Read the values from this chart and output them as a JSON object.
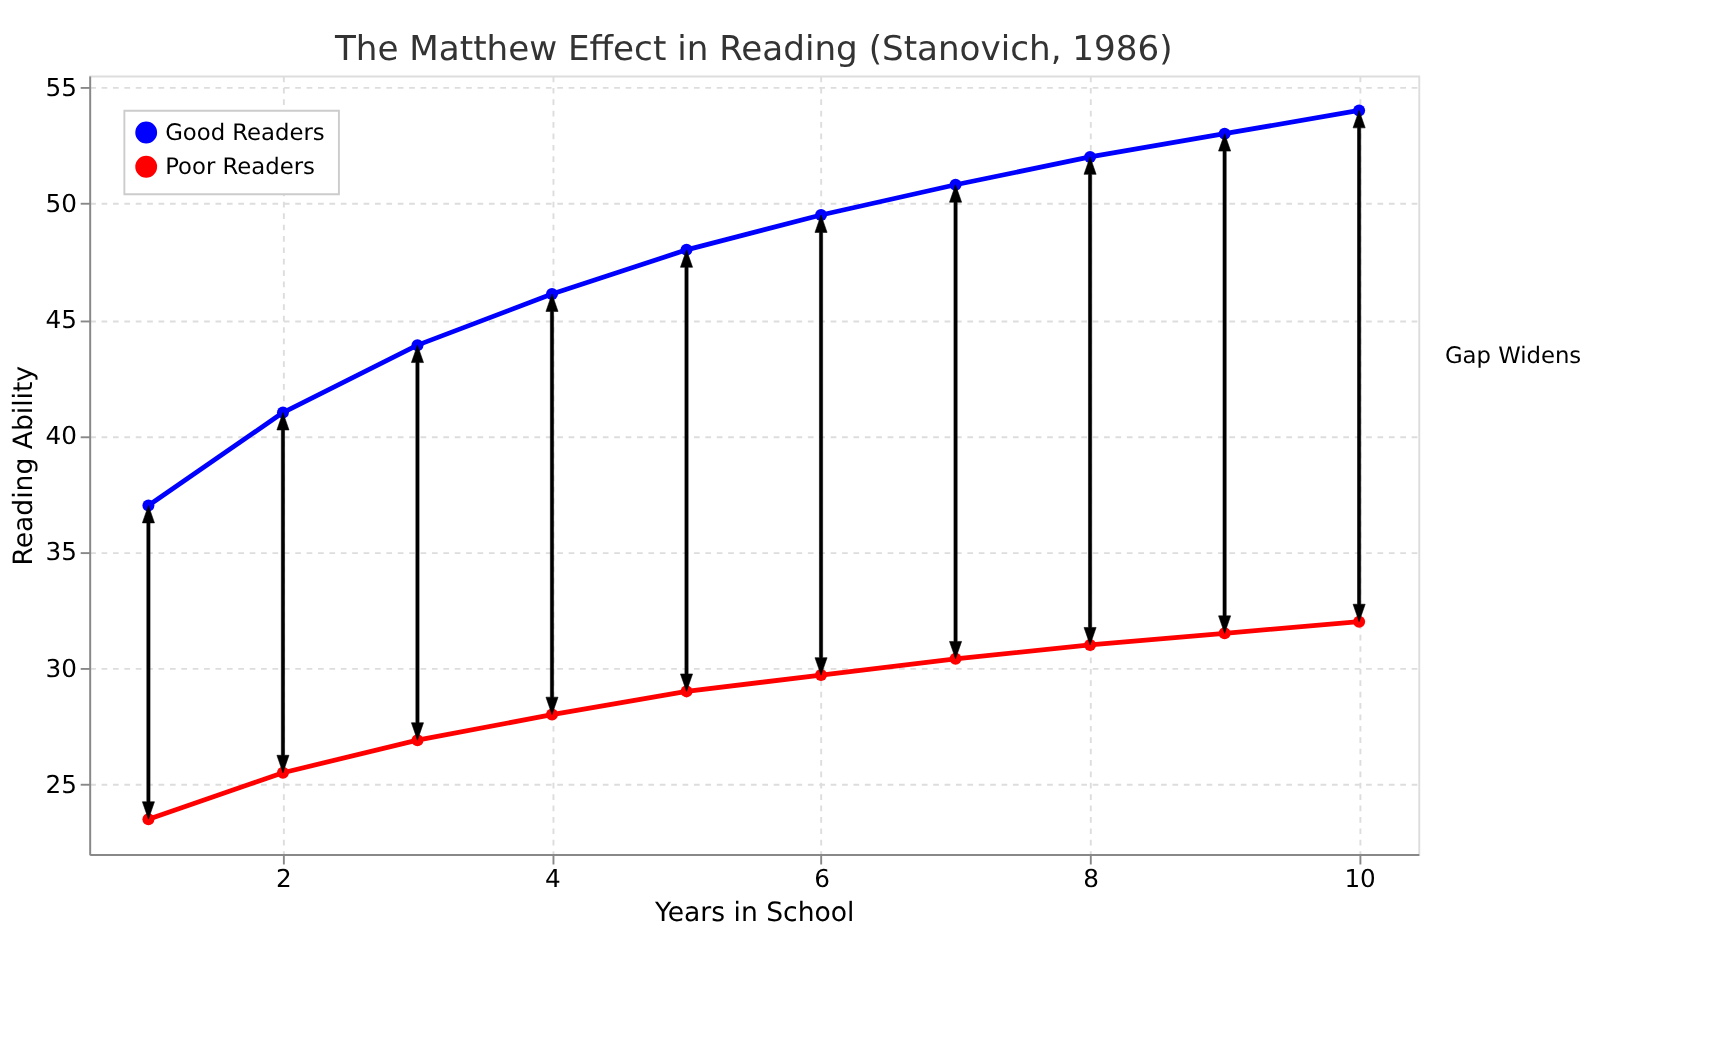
{
  "chart_data": {
    "type": "line",
    "title": "The Matthew Effect in Reading (Stanovich, 1986)",
    "xlabel": "Years in School",
    "ylabel": "Reading Ability",
    "x": [
      1,
      2,
      3,
      4,
      5,
      6,
      7,
      8,
      9,
      10
    ],
    "series": [
      {
        "name": "Good Readers",
        "color": "#0000ff",
        "values": [
          37.0,
          41.0,
          43.9,
          46.1,
          48.0,
          49.5,
          50.8,
          52.0,
          53.0,
          54.0
        ]
      },
      {
        "name": "Poor Readers",
        "color": "#ff0000",
        "values": [
          23.5,
          25.5,
          26.9,
          28.0,
          29.0,
          29.7,
          30.4,
          31.0,
          31.5,
          32.0
        ]
      }
    ],
    "xlim": [
      0.56,
      10.44
    ],
    "xticks": [
      2,
      4,
      6,
      8,
      10
    ],
    "ylim": [
      22,
      55.5
    ],
    "yticks": [
      25,
      30,
      35,
      40,
      45,
      50,
      55
    ],
    "grid": true,
    "legend": "top left",
    "marker": "circle",
    "line_style": "solid",
    "annotations": [
      "Gap Widens"
    ]
  }
}
